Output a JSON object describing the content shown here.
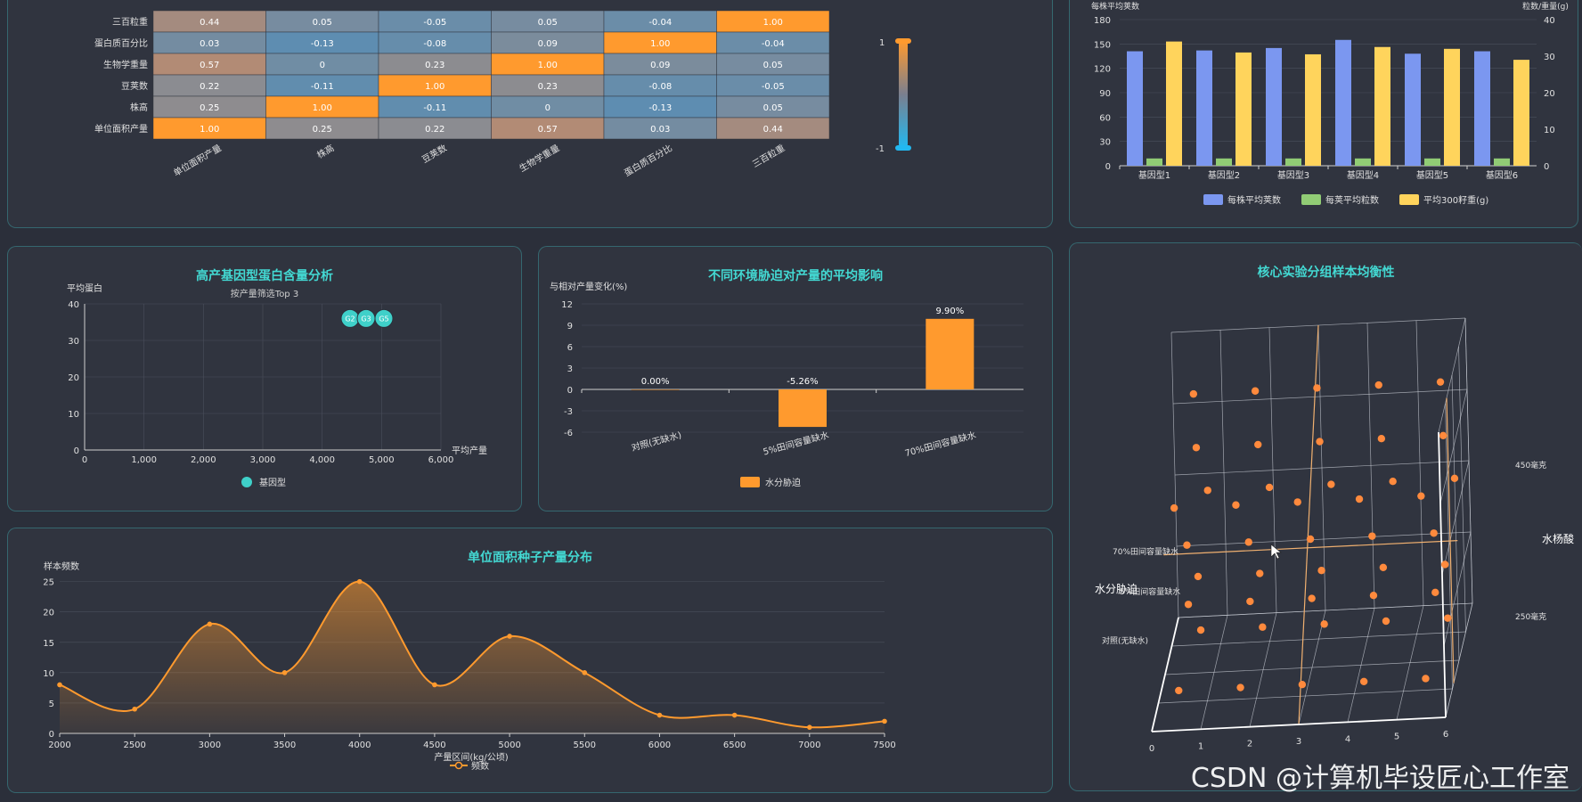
{
  "heatmap": {
    "rows": [
      "三百粒重",
      "蛋白质百分比",
      "生物学重量",
      "豆荚数",
      "株高",
      "单位面积产量"
    ],
    "cols": [
      "单位面积产量",
      "株高",
      "豆荚数",
      "生物学重量",
      "蛋白质百分比",
      "三百粒重"
    ],
    "matrix": [
      [
        0.44,
        0.05,
        -0.05,
        0.05,
        -0.04,
        1.0
      ],
      [
        0.03,
        -0.13,
        -0.08,
        0.09,
        1.0,
        -0.04
      ],
      [
        0.57,
        0,
        0.23,
        1.0,
        0.09,
        0.05
      ],
      [
        0.22,
        -0.11,
        1.0,
        0.23,
        -0.08,
        -0.05
      ],
      [
        0.25,
        1.0,
        -0.11,
        0,
        -0.13,
        0.05
      ],
      [
        1.0,
        0.25,
        0.22,
        0.57,
        0.03,
        0.44
      ]
    ],
    "labels": [
      [
        "0.44",
        "0.05",
        "-0.05",
        "0.05",
        "-0.04",
        "1.00"
      ],
      [
        "0.03",
        "-0.13",
        "-0.08",
        "0.09",
        "1.00",
        "-0.04"
      ],
      [
        "0.57",
        "0",
        "0.23",
        "1.00",
        "0.09",
        "0.05"
      ],
      [
        "0.22",
        "-0.11",
        "1.00",
        "0.23",
        "-0.08",
        "-0.05"
      ],
      [
        "0.25",
        "1.00",
        "-0.11",
        "0",
        "-0.13",
        "0.05"
      ],
      [
        "1.00",
        "0.25",
        "0.22",
        "0.57",
        "0.03",
        "0.44"
      ]
    ],
    "scale_max": "1",
    "scale_min": "-1",
    "colors": {
      "high": "#ff9a2e",
      "low": "#5b8db3"
    }
  },
  "bar_top": {
    "categories": [
      "基因型1",
      "基因型2",
      "基因型3",
      "基因型4",
      "基因型5",
      "基因型6"
    ],
    "series": [
      {
        "name": "每株平均荚数",
        "values": [
          141,
          142,
          145,
          155,
          138,
          141
        ],
        "color": "#7b97f0",
        "axis": "left"
      },
      {
        "name": "每荚平均粒数",
        "values": [
          2.0,
          2.0,
          2.0,
          2.0,
          2.0,
          2.0
        ],
        "color": "#91cc75",
        "axis": "right"
      },
      {
        "name": "平均300籽重(g)",
        "values": [
          34,
          31,
          30.5,
          32.5,
          32,
          29
        ]
      }
    ],
    "series_colors": [
      "#7b97f0",
      "#91cc75",
      "#ffd45c"
    ],
    "ylabel_left": "每株平均荚数",
    "ylabel_right": "粒数/重量(g)",
    "yticks_left": [
      "0",
      "30",
      "60",
      "90",
      "120",
      "150",
      "180"
    ],
    "yticks_right": [
      "0",
      "10",
      "20",
      "30",
      "40"
    ],
    "ylim_left": [
      0,
      180
    ],
    "ylim_right": [
      0,
      40
    ]
  },
  "scatter": {
    "title": "高产基因型蛋白含量分析",
    "subtitle": "按产量筛选Top 3",
    "ylabel": "平均蛋白",
    "xlabel": "平均产量",
    "xticks": [
      "0",
      "1,000",
      "2,000",
      "3,000",
      "4,000",
      "5,000",
      "6,000"
    ],
    "yticks": [
      "0",
      "10",
      "20",
      "30",
      "40"
    ],
    "xlim": [
      0,
      6000
    ],
    "ylim": [
      0,
      40
    ],
    "points": [
      {
        "label": "G2",
        "x": 4470,
        "y": 36
      },
      {
        "label": "G3",
        "x": 4740,
        "y": 36
      },
      {
        "label": "G5",
        "x": 5040,
        "y": 36
      }
    ],
    "legend": "基因型",
    "color": "#3fd0c9"
  },
  "env_bar": {
    "title": "不同环境胁迫对产量的平均影响",
    "ylabel": "与相对产量变化(%)",
    "categories": [
      "对照(无缺水)",
      "5%田间容量缺水",
      "70%田间容量缺水"
    ],
    "values": [
      0.0,
      -5.26,
      9.9
    ],
    "value_labels": [
      "0.00%",
      "-5.26%",
      "9.90%"
    ],
    "yticks": [
      "-6",
      "-3",
      "0",
      "3",
      "6",
      "9",
      "12"
    ],
    "ylim": [
      -6,
      12
    ],
    "legend": "水分胁迫",
    "color": "#ff9a2e"
  },
  "line": {
    "title": "单位面积种子产量分布",
    "ylabel": "样本频数",
    "xlabel": "产量区间(kg/公顷)",
    "legend": "频数",
    "x": [
      2000,
      2500,
      3000,
      3500,
      4000,
      4500,
      5000,
      5500,
      6000,
      6500,
      7000,
      7500
    ],
    "y": [
      8,
      4,
      18,
      10,
      25,
      8,
      16,
      10,
      3,
      3,
      1,
      2
    ],
    "xticks": [
      "2000",
      "2500",
      "3000",
      "3500",
      "4000",
      "4500",
      "5000",
      "5500",
      "6000",
      "6500",
      "7000",
      "7500"
    ],
    "yticks": [
      "0",
      "5",
      "10",
      "15",
      "20",
      "25"
    ],
    "ylim": [
      0,
      27
    ],
    "color": "#ff9a2e"
  },
  "scatter3d": {
    "title": "核心实验分组样本均衡性",
    "axis_z_label": "水分胁迫",
    "axis_y_label": "水杨酸",
    "z_ticks": [
      "70%田间容量缺水",
      "5%田间容量缺水",
      "对照(无缺水)"
    ],
    "y_ticks": [
      "450毫克",
      "250毫克"
    ],
    "x_ticks": [
      "0",
      "1",
      "2",
      "3",
      "4",
      "5",
      "6"
    ],
    "color": "#ff8a3d"
  },
  "watermark": "CSDN @计算机毕设匠心工作室"
}
